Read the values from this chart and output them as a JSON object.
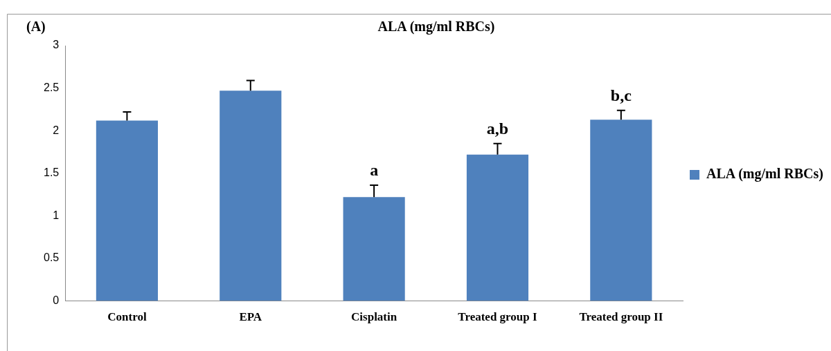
{
  "chart_data": {
    "type": "bar",
    "title": "ALA (mg/ml RBCs)",
    "categories": [
      "Control",
      "EPA",
      "Cisplatin",
      "Treated group I",
      "Treated group II"
    ],
    "series": [
      {
        "name": "ALA (mg/ml RBCs)",
        "color": "#4f81bd",
        "values": [
          2.12,
          2.47,
          1.22,
          1.72,
          2.13
        ],
        "errors": [
          [
            2.12,
            2.22
          ],
          [
            2.47,
            2.59
          ],
          [
            1.22,
            1.36
          ],
          [
            1.72,
            1.85
          ],
          [
            2.13,
            2.24
          ]
        ],
        "value_labels": [
          null,
          null,
          "a",
          "a,b",
          "b,c"
        ]
      }
    ],
    "ylim": [
      0,
      3
    ],
    "yticks": [
      0,
      0.5,
      1,
      1.5,
      2,
      2.5,
      3
    ],
    "grid": false,
    "legend": "right",
    "annotations": [
      "(A)"
    ]
  }
}
